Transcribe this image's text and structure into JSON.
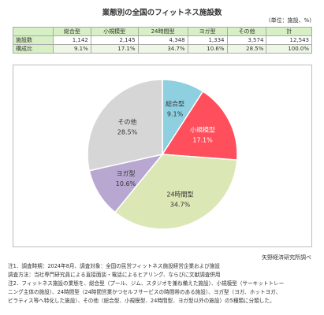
{
  "title": "業態別の全国のフィットネス施設数",
  "unit_note": "(単位：施設、%)",
  "table": {
    "columns": [
      "総合型",
      "小規模型",
      "24時間型",
      "ヨガ型",
      "その他",
      "計"
    ],
    "rows": [
      {
        "label": "施設数",
        "values": [
          "1,142",
          "2,145",
          "4,348",
          "1,334",
          "3,574",
          "12,543"
        ]
      },
      {
        "label": "構成比",
        "values": [
          "9.1%",
          "17.1%",
          "34.7%",
          "10.6%",
          "28.5%",
          "100.0%"
        ]
      }
    ]
  },
  "chart_data": {
    "type": "pie",
    "categories": [
      "総合型",
      "小規模型",
      "24時間型",
      "ヨガ型",
      "その他"
    ],
    "values": [
      9.1,
      17.1,
      34.7,
      10.6,
      28.5
    ],
    "value_labels": [
      "9.1%",
      "17.1%",
      "34.7%",
      "10.6%",
      "28.5%"
    ],
    "colors": [
      "#8ecfe0",
      "#ff4f5c",
      "#dbe7b4",
      "#b7a7d1",
      "#d6d6d6"
    ],
    "start_angle_deg": 0,
    "direction": "clockwise",
    "legend": "none"
  },
  "source": "矢野経済研究所調べ",
  "notes": [
    "注1．調査時期：2024年8月、調査対象：全国の民営フィットネス施設経営企業および施設",
    "調査方法：当社専門研究員による直接面談・電話によるヒアリング、ならびに文献調査併用",
    "注2．フィットネス施設の業態を、総合型（プール、ジム、スタジオを兼ね備えた施設）、小規模型（サーキットトレー",
    "ニング主体の施設）、24時間型（24時間営業かつセルフサービスの時間帯のある施設）、ヨガ型（ヨガ、ホットヨガ、",
    "ピラティス等へ特化した施設）、その他（総合型、小規模型、24時間型、ヨガ型以外の施設）の5種類に分類した。"
  ]
}
